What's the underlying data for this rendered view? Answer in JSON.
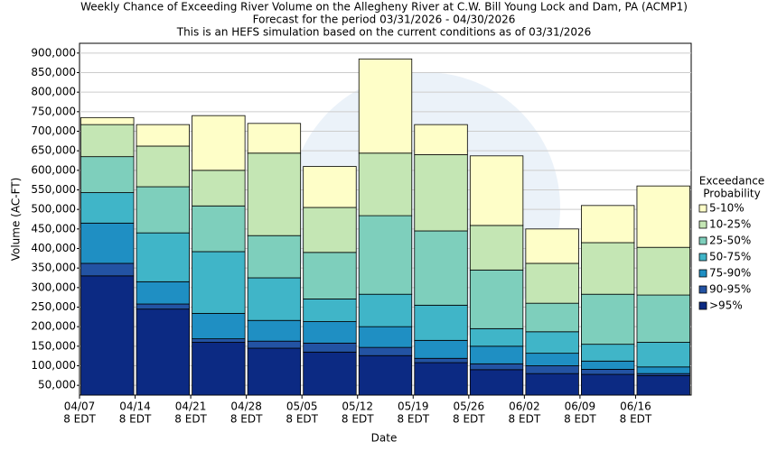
{
  "chart_data": {
    "type": "stacked_bar",
    "title": "Weekly Chance of Exceeding River Volume on the Allegheny River at C.W. Bill Young Lock and Dam, PA (ACMP1)",
    "subtitle": [
      "Forecast for the period 03/31/2026 - 04/30/2026",
      "This is an HEFS simulation based on the current conditions as of 03/31/2026"
    ],
    "y_label": "Volume (AC-FT)",
    "x_label": "Date",
    "legend_title": [
      "Exceedance",
      "Probability"
    ],
    "categories": [
      [
        "04/07",
        "8 EDT"
      ],
      [
        "04/14",
        "8 EDT"
      ],
      [
        "04/21",
        "8 EDT"
      ],
      [
        "04/28",
        "8 EDT"
      ],
      [
        "05/05",
        "8 EDT"
      ],
      [
        "05/12",
        "8 EDT"
      ],
      [
        "05/19",
        "8 EDT"
      ],
      [
        "05/26",
        "8 EDT"
      ],
      [
        "06/02",
        "8 EDT"
      ],
      [
        "06/09",
        "8 EDT"
      ],
      [
        "06/16",
        "8 EDT"
      ]
    ],
    "series": [
      {
        "name": "5-10%",
        "color": "#fefec8",
        "values": [
          18000,
          55000,
          140000,
          76000,
          105000,
          241000,
          77000,
          178000,
          88000,
          95000,
          157000
        ]
      },
      {
        "name": "10-25%",
        "color": "#c4e6b4",
        "values": [
          82000,
          104000,
          91000,
          211000,
          115000,
          160000,
          195000,
          114000,
          102000,
          132000,
          122000
        ]
      },
      {
        "name": "25-50%",
        "color": "#7ecfbc",
        "values": [
          92000,
          118000,
          117000,
          108000,
          119000,
          201000,
          190000,
          150000,
          73000,
          128000,
          121000
        ]
      },
      {
        "name": "50-75%",
        "color": "#40b5c8",
        "values": [
          78000,
          125000,
          158000,
          109000,
          58000,
          83000,
          90000,
          45000,
          55000,
          43000,
          63000
        ]
      },
      {
        "name": "75-90%",
        "color": "#1f8fc3",
        "values": [
          103000,
          57000,
          65000,
          53000,
          55000,
          53000,
          46000,
          45000,
          32000,
          21000,
          17000
        ]
      },
      {
        "name": "90-95%",
        "color": "#2353a3",
        "values": [
          32000,
          13000,
          9000,
          18000,
          23000,
          21000,
          11000,
          15000,
          20000,
          13000,
          5000
        ]
      },
      {
        "name": ">95%",
        "color": "#0c2a83",
        "values": [
          330000,
          245000,
          160000,
          145000,
          135000,
          126000,
          108000,
          90000,
          80000,
          78000,
          75000
        ]
      }
    ],
    "ylim": [
      25000,
      925000
    ],
    "yticks": [
      {
        "value": 50000,
        "label": "50,000"
      },
      {
        "value": 100000,
        "label": "100,000"
      },
      {
        "value": 150000,
        "label": "150,000"
      },
      {
        "value": 200000,
        "label": "200,000"
      },
      {
        "value": 250000,
        "label": "250,000"
      },
      {
        "value": 300000,
        "label": "300,000"
      },
      {
        "value": 350000,
        "label": "350,000"
      },
      {
        "value": 400000,
        "label": "400,000"
      },
      {
        "value": 450000,
        "label": "450,000"
      },
      {
        "value": 500000,
        "label": "500,000"
      },
      {
        "value": 550000,
        "label": "550,000"
      },
      {
        "value": 600000,
        "label": "600,000"
      },
      {
        "value": 650000,
        "label": "650,000"
      },
      {
        "value": 700000,
        "label": "700,000"
      },
      {
        "value": 750000,
        "label": "750,000"
      },
      {
        "value": 800000,
        "label": "800,000"
      },
      {
        "value": 850000,
        "label": "850,000"
      },
      {
        "value": 900000,
        "label": "900,000"
      }
    ],
    "grid": true
  }
}
